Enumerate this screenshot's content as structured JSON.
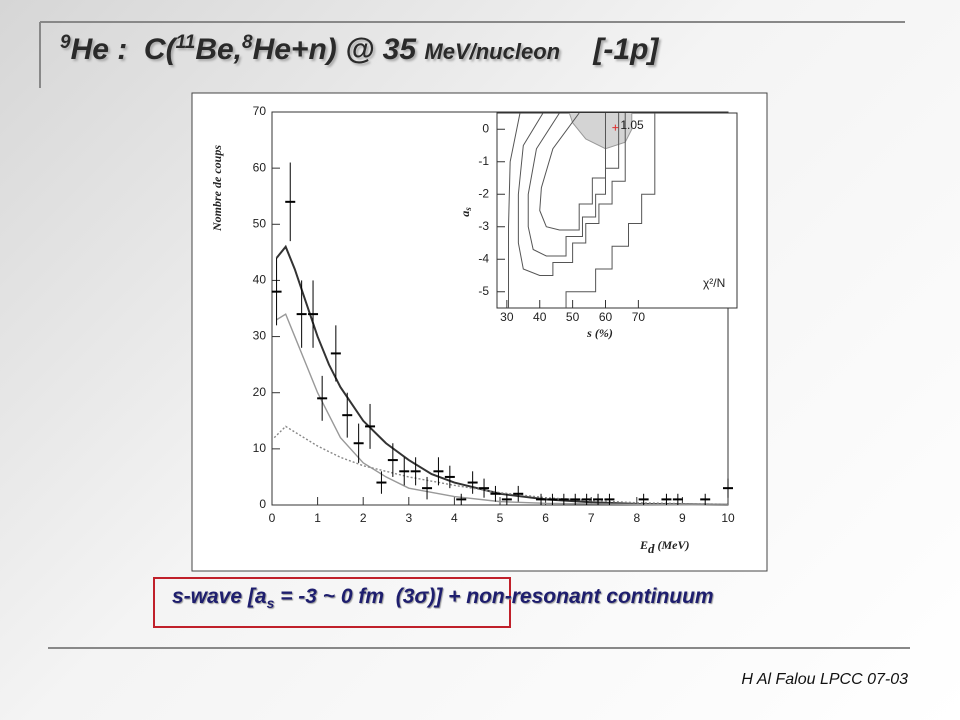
{
  "title": {
    "mass1": "9",
    "text1": "He :  C(",
    "mass2": "11",
    "text2": "Be,",
    "mass3": "8",
    "text3": "He+n) @ 35 ",
    "unit": "MeV/nucleon",
    "tag": "[-1p]"
  },
  "caption": {
    "text1": "s-wave [a",
    "sub": "s",
    "text2": " = -3 ~ 0 fm  (3",
    "sigma": "σ",
    "text3": ")] + non-resonant continuum"
  },
  "footer": "H Al Falou LPCC 07-03",
  "chart_data": [
    {
      "type": "scatter",
      "x_label": "E",
      "x_label_sub": "d",
      "x_label_unit": " (MeV)",
      "y_label": "Nombre de coups",
      "xlim": [
        0,
        10
      ],
      "ylim": [
        0,
        70
      ],
      "xticks": [
        0,
        1,
        2,
        3,
        4,
        5,
        6,
        7,
        8,
        9,
        10
      ],
      "yticks": [
        0,
        10,
        20,
        30,
        40,
        50,
        60,
        70
      ],
      "series": [
        {
          "color": "#000000",
          "x": [
            0.1,
            0.4,
            0.65,
            0.9,
            1.1,
            1.4,
            1.65,
            1.9,
            2.15,
            2.4,
            2.65,
            2.9,
            3.15,
            3.4,
            3.65,
            3.9,
            4.15,
            4.4,
            4.65,
            4.9,
            5.15,
            5.4,
            5.9,
            6.15,
            6.4,
            6.65,
            6.9,
            7.15,
            7.4,
            8.15,
            8.65,
            8.9,
            9.5,
            10
          ],
          "values": [
            38,
            54,
            34,
            34,
            19,
            27,
            16,
            11,
            14,
            4,
            8,
            6,
            6,
            3,
            6,
            5,
            1,
            4,
            3,
            2,
            1,
            2,
            1,
            1,
            1,
            1,
            1,
            1,
            1,
            1,
            1,
            1,
            1,
            3
          ],
          "errors": [
            6,
            7,
            6,
            6,
            4,
            5,
            4,
            3.5,
            4,
            2,
            3,
            2.5,
            2.5,
            2,
            2.5,
            2,
            1,
            2,
            1.7,
            1.4,
            1,
            1.4,
            1,
            1,
            1,
            1,
            1,
            1,
            1,
            1,
            1,
            1,
            1,
            1.7
          ]
        }
      ],
      "curves": [
        {
          "color": "#333333",
          "style": "solid",
          "x": [
            0.1,
            0.3,
            0.5,
            0.75,
            1,
            1.25,
            1.5,
            2,
            2.5,
            3,
            3.5,
            4,
            5,
            6,
            7,
            8,
            10
          ],
          "values": [
            44,
            46,
            42,
            36,
            30,
            25,
            21,
            15,
            11,
            8,
            5.5,
            4,
            2,
            1,
            0.5,
            0.2,
            0.05
          ]
        },
        {
          "color": "#999999",
          "style": "solid",
          "x": [
            0.1,
            0.3,
            0.5,
            0.75,
            1,
            1.5,
            2,
            2.5,
            3,
            4,
            5,
            6,
            8,
            10
          ],
          "values": [
            33,
            34,
            30,
            25,
            20,
            12,
            7.5,
            5,
            3,
            1.5,
            0.6,
            0.3,
            0.1,
            0
          ]
        },
        {
          "color": "#888888",
          "style": "dotted",
          "x": [
            0.05,
            0.3,
            0.5,
            1,
            1.5,
            2,
            2.5,
            3,
            4,
            5,
            6,
            7,
            8,
            10
          ],
          "values": [
            12,
            14,
            13,
            10.5,
            8.5,
            7,
            6,
            5,
            3.5,
            2.2,
            1.3,
            0.8,
            0.4,
            0.1
          ]
        }
      ]
    },
    {
      "type": "contour",
      "x_label": "s (%)",
      "y_label": "a",
      "y_label_sub": "s",
      "legend_label": "χ²/N",
      "xlim": [
        27,
        100
      ],
      "ylim": [
        -5.5,
        0.5
      ],
      "xticks": [
        30,
        40,
        50,
        60,
        70
      ],
      "yticks": [
        0,
        -1,
        -2,
        -3,
        -4,
        -5
      ],
      "contours": [
        {
          "color": "#555555",
          "x": [
            34,
            31,
            30.5,
            30.5,
            null,
            48,
            48,
            57,
            57,
            62,
            62,
            67,
            67,
            71,
            71,
            75,
            75
          ],
          "values": [
            0.5,
            -1,
            -3,
            -5.5,
            null,
            -5.5,
            -5,
            -5,
            -4.3,
            -4.3,
            -3.6,
            -3.6,
            -2.9,
            -2.9,
            -2,
            -2,
            0.5
          ]
        },
        {
          "color": "#555555",
          "x": [
            41,
            35,
            33.5,
            33.5,
            35,
            40,
            44,
            44,
            50,
            50,
            54,
            54,
            58,
            58,
            62,
            62,
            66,
            66
          ],
          "values": [
            0.5,
            -0.5,
            -2,
            -3.5,
            -4.3,
            -4.5,
            -4.5,
            -4.1,
            -4.1,
            -3.5,
            -3.5,
            -2.9,
            -2.9,
            -2.3,
            -2.3,
            -1.6,
            -1.6,
            0.5
          ]
        },
        {
          "color": "#555555",
          "x": [
            46,
            39,
            36.5,
            36.5,
            38,
            42,
            48,
            48,
            53,
            53,
            57,
            57,
            60,
            60,
            64,
            64
          ],
          "values": [
            0.5,
            -0.6,
            -2,
            -3,
            -3.7,
            -3.9,
            -3.9,
            -3.3,
            -3.3,
            -2.7,
            -2.7,
            -2,
            -2,
            -1.2,
            -1.2,
            0.5
          ]
        },
        {
          "color": "#555555",
          "x": [
            52,
            44,
            40.5,
            40,
            42,
            46,
            52,
            52,
            56,
            56,
            60,
            60
          ],
          "values": [
            0.5,
            -0.6,
            -1.8,
            -2.5,
            -3,
            -3.1,
            -3.1,
            -2.3,
            -2.3,
            -1.5,
            -1.5,
            0.5
          ]
        }
      ],
      "fill": {
        "color": "#d4d4d4",
        "x": [
          49,
          50,
          54,
          60,
          66,
          68,
          68
        ],
        "values": [
          0.5,
          0.2,
          -0.3,
          -0.6,
          -0.4,
          0,
          0.5
        ]
      },
      "minimum": {
        "x": 63,
        "value": 0.05,
        "label": "1.05",
        "color": "#e03030"
      }
    }
  ]
}
